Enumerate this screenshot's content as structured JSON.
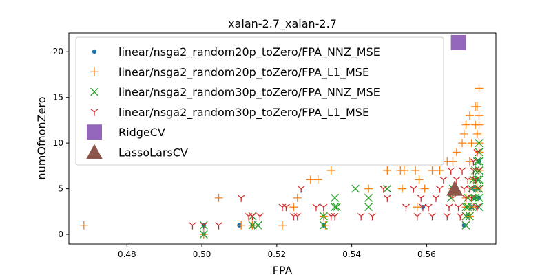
{
  "chart_data": {
    "type": "scatter",
    "title": "xalan-2.7_xalan-2.7",
    "xlabel": "FPA",
    "ylabel": "numOfnonZero",
    "xlim": [
      0.4645,
      0.5785
    ],
    "ylim": [
      -1.05,
      22.05
    ],
    "xticks": [
      "0.48",
      "0.50",
      "0.52",
      "0.54",
      "0.56"
    ],
    "xtick_values": [
      0.48,
      0.5,
      0.52,
      0.54,
      0.56
    ],
    "yticks": [
      "0",
      "5",
      "10",
      "15",
      "20"
    ],
    "ytick_values": [
      0,
      5,
      10,
      15,
      20
    ],
    "grid": false,
    "legend_position": "top-left",
    "series": [
      {
        "name": "linear/nsga2_random20p_toZero/FPA_NNZ_MSE",
        "marker": "dot",
        "color": "#1f77b4",
        "points": [
          [
            0.5005,
            1
          ],
          [
            0.5005,
            0
          ],
          [
            0.51,
            1
          ],
          [
            0.5135,
            1
          ],
          [
            0.5325,
            1
          ],
          [
            0.559,
            3
          ],
          [
            0.57,
            1
          ],
          [
            0.571,
            2
          ],
          [
            0.572,
            3
          ],
          [
            0.5725,
            5
          ],
          [
            0.573,
            5
          ],
          [
            0.5735,
            6
          ],
          [
            0.574,
            8
          ],
          [
            0.574,
            4
          ],
          [
            0.5735,
            3
          ],
          [
            0.5728,
            4
          ]
        ]
      },
      {
        "name": "linear/nsga2_random20p_toZero/FPA_L1_MSE",
        "marker": "plus",
        "color": "#ff7f0e",
        "points": [
          [
            0.4685,
            1
          ],
          [
            0.5005,
            0
          ],
          [
            0.5045,
            4
          ],
          [
            0.5105,
            1
          ],
          [
            0.5135,
            1
          ],
          [
            0.5215,
            1
          ],
          [
            0.5245,
            3
          ],
          [
            0.5255,
            4
          ],
          [
            0.529,
            6
          ],
          [
            0.531,
            6
          ],
          [
            0.533,
            1
          ],
          [
            0.5325,
            2
          ],
          [
            0.5345,
            7
          ],
          [
            0.5445,
            5
          ],
          [
            0.5495,
            7
          ],
          [
            0.553,
            7
          ],
          [
            0.554,
            7
          ],
          [
            0.5535,
            5
          ],
          [
            0.557,
            7
          ],
          [
            0.5575,
            3
          ],
          [
            0.558,
            6
          ],
          [
            0.5595,
            5
          ],
          [
            0.5615,
            7
          ],
          [
            0.5635,
            7
          ],
          [
            0.5655,
            8
          ],
          [
            0.567,
            8
          ],
          [
            0.567,
            5
          ],
          [
            0.568,
            9
          ],
          [
            0.5695,
            10
          ],
          [
            0.57,
            11
          ],
          [
            0.5705,
            12
          ],
          [
            0.5705,
            4
          ],
          [
            0.5715,
            13
          ],
          [
            0.5715,
            8
          ],
          [
            0.572,
            10
          ],
          [
            0.5725,
            6
          ],
          [
            0.573,
            14
          ],
          [
            0.573,
            12
          ],
          [
            0.5735,
            14
          ],
          [
            0.5735,
            11
          ],
          [
            0.574,
            16
          ],
          [
            0.574,
            13
          ],
          [
            0.574,
            12
          ],
          [
            0.574,
            10
          ],
          [
            0.574,
            9
          ],
          [
            0.574,
            7
          ],
          [
            0.5735,
            5
          ],
          [
            0.5725,
            3
          ],
          [
            0.5715,
            2
          ],
          [
            0.5705,
            3
          ]
        ]
      },
      {
        "name": "linear/nsga2_random30p_toZero/FPA_NNZ_MSE",
        "marker": "x",
        "color": "#2ca02c",
        "points": [
          [
            0.5005,
            1
          ],
          [
            0.5005,
            0
          ],
          [
            0.5135,
            2
          ],
          [
            0.5135,
            1
          ],
          [
            0.515,
            1
          ],
          [
            0.5325,
            2
          ],
          [
            0.5325,
            1
          ],
          [
            0.5355,
            3
          ],
          [
            0.5355,
            4
          ],
          [
            0.536,
            3
          ],
          [
            0.541,
            5
          ],
          [
            0.5445,
            4
          ],
          [
            0.5445,
            3
          ],
          [
            0.5495,
            5
          ],
          [
            0.5665,
            4
          ],
          [
            0.567,
            5
          ],
          [
            0.5705,
            2
          ],
          [
            0.5705,
            3
          ],
          [
            0.571,
            3
          ],
          [
            0.571,
            4
          ],
          [
            0.5715,
            2
          ],
          [
            0.572,
            3
          ],
          [
            0.572,
            5
          ],
          [
            0.5725,
            4
          ],
          [
            0.5725,
            6
          ],
          [
            0.573,
            4
          ],
          [
            0.573,
            7
          ],
          [
            0.5735,
            5
          ],
          [
            0.5735,
            8
          ],
          [
            0.574,
            3
          ],
          [
            0.574,
            4
          ],
          [
            0.574,
            5
          ],
          [
            0.574,
            6
          ],
          [
            0.574,
            7
          ],
          [
            0.574,
            8
          ],
          [
            0.574,
            9
          ],
          [
            0.574,
            10
          ],
          [
            0.5735,
            6
          ],
          [
            0.5705,
            1
          ]
        ]
      },
      {
        "name": "linear/nsga2_random30p_toZero/FPA_L1_MSE",
        "marker": "tri_down",
        "color": "#d62728",
        "points": [
          [
            0.4975,
            1
          ],
          [
            0.5005,
            1
          ],
          [
            0.5045,
            1
          ],
          [
            0.5105,
            4
          ],
          [
            0.5125,
            2
          ],
          [
            0.5135,
            2
          ],
          [
            0.5155,
            2
          ],
          [
            0.5215,
            3
          ],
          [
            0.5225,
            3
          ],
          [
            0.5245,
            2
          ],
          [
            0.5255,
            2
          ],
          [
            0.5265,
            5
          ],
          [
            0.5305,
            3
          ],
          [
            0.5325,
            3
          ],
          [
            0.5345,
            2
          ],
          [
            0.5355,
            2
          ],
          [
            0.5425,
            2
          ],
          [
            0.5455,
            2
          ],
          [
            0.5485,
            5
          ],
          [
            0.5495,
            4
          ],
          [
            0.5545,
            3
          ],
          [
            0.5565,
            5
          ],
          [
            0.5575,
            2
          ],
          [
            0.5585,
            4
          ],
          [
            0.559,
            3
          ],
          [
            0.5605,
            3
          ],
          [
            0.5615,
            2
          ],
          [
            0.5625,
            4
          ],
          [
            0.5635,
            5
          ],
          [
            0.5645,
            6
          ],
          [
            0.5655,
            2
          ],
          [
            0.566,
            3
          ],
          [
            0.5665,
            7
          ],
          [
            0.567,
            4
          ],
          [
            0.568,
            6
          ],
          [
            0.5685,
            3
          ],
          [
            0.569,
            2
          ],
          [
            0.5695,
            7
          ],
          [
            0.57,
            5
          ],
          [
            0.5705,
            4
          ],
          [
            0.571,
            6
          ],
          [
            0.5715,
            5
          ],
          [
            0.572,
            4
          ],
          [
            0.5725,
            7
          ],
          [
            0.573,
            6
          ],
          [
            0.5735,
            3
          ],
          [
            0.574,
            7
          ],
          [
            0.5735,
            9
          ],
          [
            0.574,
            5
          ],
          [
            0.5725,
            8
          ]
        ]
      },
      {
        "name": "RidgeCV",
        "marker": "square",
        "color": "#9467bd",
        "points": [
          [
            0.5685,
            21
          ]
        ]
      },
      {
        "name": "LassoLarsCV",
        "marker": "triangle",
        "color": "#8c564b",
        "points": [
          [
            0.5675,
            5
          ]
        ]
      }
    ]
  }
}
